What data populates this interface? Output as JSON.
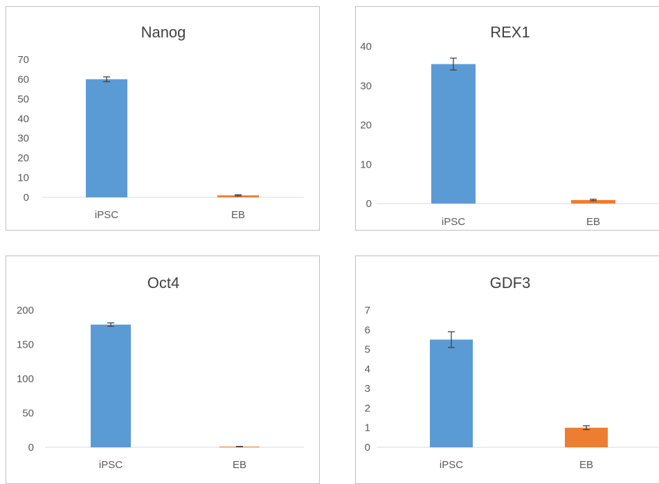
{
  "chart_data": [
    {
      "type": "bar",
      "title": "Nanog",
      "categories": [
        "iPSC",
        "EB"
      ],
      "values": [
        60,
        1
      ],
      "errors": [
        1.2,
        0.3
      ],
      "ylim": [
        0,
        70
      ],
      "yticks": [
        0,
        10,
        20,
        30,
        40,
        50,
        60,
        70
      ],
      "colors": [
        "#5b9bd5",
        "#ed7d31"
      ],
      "grid": false
    },
    {
      "type": "bar",
      "title": "REX1",
      "categories": [
        "iPSC",
        "EB"
      ],
      "values": [
        35.5,
        0.9
      ],
      "errors": [
        1.5,
        0.2
      ],
      "ylim": [
        0,
        40
      ],
      "yticks": [
        0,
        10,
        20,
        30,
        40
      ],
      "colors": [
        "#5b9bd5",
        "#ed7d31"
      ],
      "grid": false
    },
    {
      "type": "bar",
      "title": "Oct4",
      "categories": [
        "iPSC",
        "EB"
      ],
      "values": [
        179,
        1
      ],
      "errors": [
        2.5,
        0.3
      ],
      "ylim": [
        0,
        200
      ],
      "yticks": [
        0,
        50,
        100,
        150,
        200
      ],
      "colors": [
        "#5b9bd5",
        "#ed7d31"
      ],
      "grid": false
    },
    {
      "type": "bar",
      "title": "GDF3",
      "categories": [
        "iPSC",
        "EB"
      ],
      "values": [
        5.5,
        1
      ],
      "errors": [
        0.4,
        0.1
      ],
      "ylim": [
        0,
        7
      ],
      "yticks": [
        0,
        1,
        2,
        3,
        4,
        5,
        6,
        7
      ],
      "colors": [
        "#5b9bd5",
        "#ed7d31"
      ],
      "grid": false
    }
  ]
}
